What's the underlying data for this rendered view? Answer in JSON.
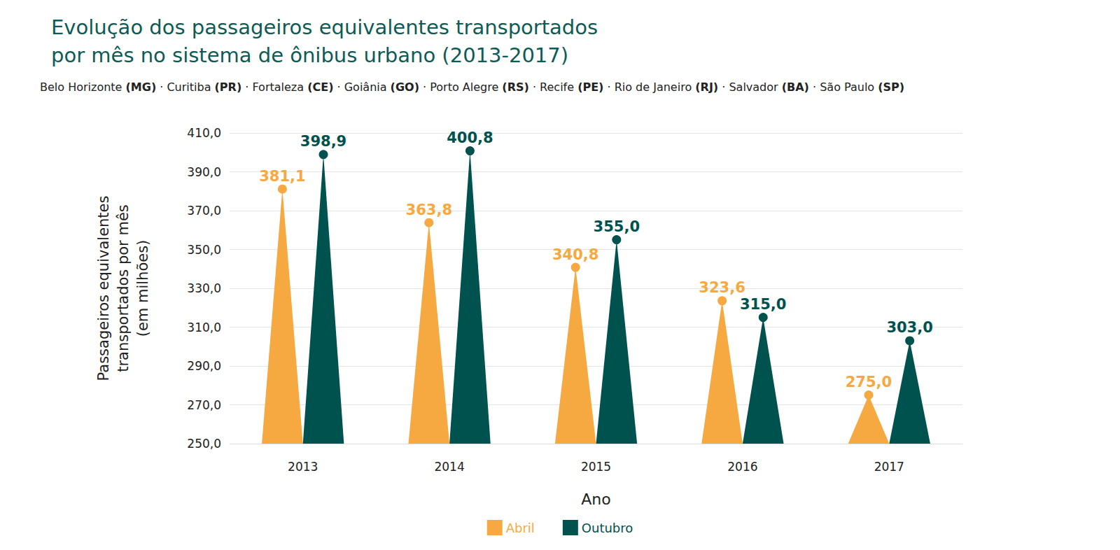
{
  "chart_data": {
    "type": "triangle_bar",
    "title": "Evolução dos passageiros equivalentes transportados\npor mês no sistema de ônibus urbano (2013-2017)",
    "subtitle": "Belo Horizonte (MG) · Curitiba (PR) · Fortaleza (CE) · Goiânia (GO) · Porto Alegre (RS) · Recife (PE) · Rio de Janeiro (RJ) · Salvador (BA) · São Paulo (SP)",
    "x_label": "Ano",
    "y_label": "Passageiros equivalentes\ntransportados por mês\n(em milhões)",
    "categories": [
      "2013",
      "2014",
      "2015",
      "2016",
      "2017"
    ],
    "series": [
      {
        "name": "Abril",
        "color": "#f5a940",
        "values": [
          381.1,
          363.8,
          340.8,
          323.6,
          275.0
        ],
        "value_labels": [
          "381,1",
          "363,8",
          "340,8",
          "323,6",
          "275,0"
        ]
      },
      {
        "name": "Outubro",
        "color": "#00524f",
        "values": [
          398.9,
          400.8,
          355.0,
          315.0,
          303.0
        ],
        "value_labels": [
          "398,9",
          "400,8",
          "355,0",
          "315,0",
          "303,0"
        ]
      }
    ],
    "ylim": [
      250,
      410
    ],
    "yticks": [
      {
        "value": 250,
        "label": "250,0"
      },
      {
        "value": 270,
        "label": "270,0"
      },
      {
        "value": 290,
        "label": "290,0"
      },
      {
        "value": 310,
        "label": "310,0"
      },
      {
        "value": 330,
        "label": "330,0"
      },
      {
        "value": 350,
        "label": "350,0"
      },
      {
        "value": 370,
        "label": "370,0"
      },
      {
        "value": 390,
        "label": "390,0"
      },
      {
        "value": 410,
        "label": "410,0"
      }
    ],
    "grid": true,
    "legend": "bottom",
    "data_labels": true
  }
}
